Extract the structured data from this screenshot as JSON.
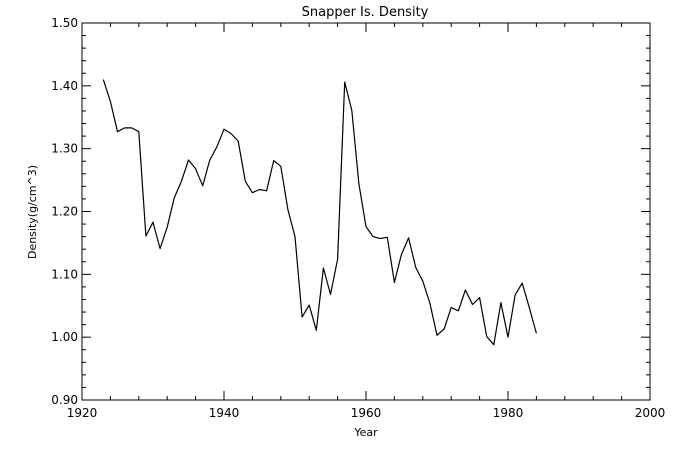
{
  "chart_data": {
    "type": "line",
    "title": "Snapper Is. Density",
    "xlabel": "Year",
    "ylabel": "Density(g/cm^3)",
    "xlim": [
      1920,
      2000
    ],
    "ylim": [
      0.9,
      1.5
    ],
    "x_ticks": [
      "1920",
      "1940",
      "1960",
      "1980",
      "2000"
    ],
    "y_ticks": [
      "0.90",
      "1.00",
      "1.10",
      "1.20",
      "1.30",
      "1.40",
      "1.50"
    ],
    "grid": false,
    "line_color": "#000000",
    "series": [
      {
        "x": [
          1923,
          1924,
          1925,
          1926,
          1927,
          1928,
          1929,
          1930,
          1931,
          1932,
          1933,
          1934,
          1935,
          1936,
          1937,
          1938,
          1939,
          1940,
          1941,
          1942,
          1943,
          1944,
          1945,
          1946,
          1947,
          1948,
          1949,
          1950,
          1951,
          1952,
          1953,
          1954,
          1955,
          1956,
          1957,
          1958,
          1959,
          1960,
          1961,
          1962,
          1963,
          1964,
          1965,
          1966,
          1967,
          1968,
          1969,
          1970,
          1971,
          1972,
          1973,
          1974,
          1975,
          1976,
          1977,
          1978,
          1979,
          1980,
          1981,
          1982,
          1983,
          1984
        ],
        "y": [
          1.41,
          1.375,
          1.327,
          1.333,
          1.333,
          1.327,
          1.161,
          1.183,
          1.141,
          1.175,
          1.222,
          1.248,
          1.282,
          1.268,
          1.241,
          1.282,
          1.303,
          1.331,
          1.324,
          1.312,
          1.248,
          1.23,
          1.235,
          1.233,
          1.281,
          1.272,
          1.203,
          1.16,
          1.032,
          1.051,
          1.011,
          1.11,
          1.068,
          1.124,
          1.406,
          1.361,
          1.244,
          1.176,
          1.16,
          1.157,
          1.159,
          1.087,
          1.132,
          1.158,
          1.111,
          1.089,
          1.054,
          1.003,
          1.013,
          1.047,
          1.042,
          1.075,
          1.052,
          1.063,
          1.001,
          0.988,
          1.055,
          1.0,
          1.067,
          1.086,
          1.047,
          1.006
        ]
      }
    ]
  }
}
